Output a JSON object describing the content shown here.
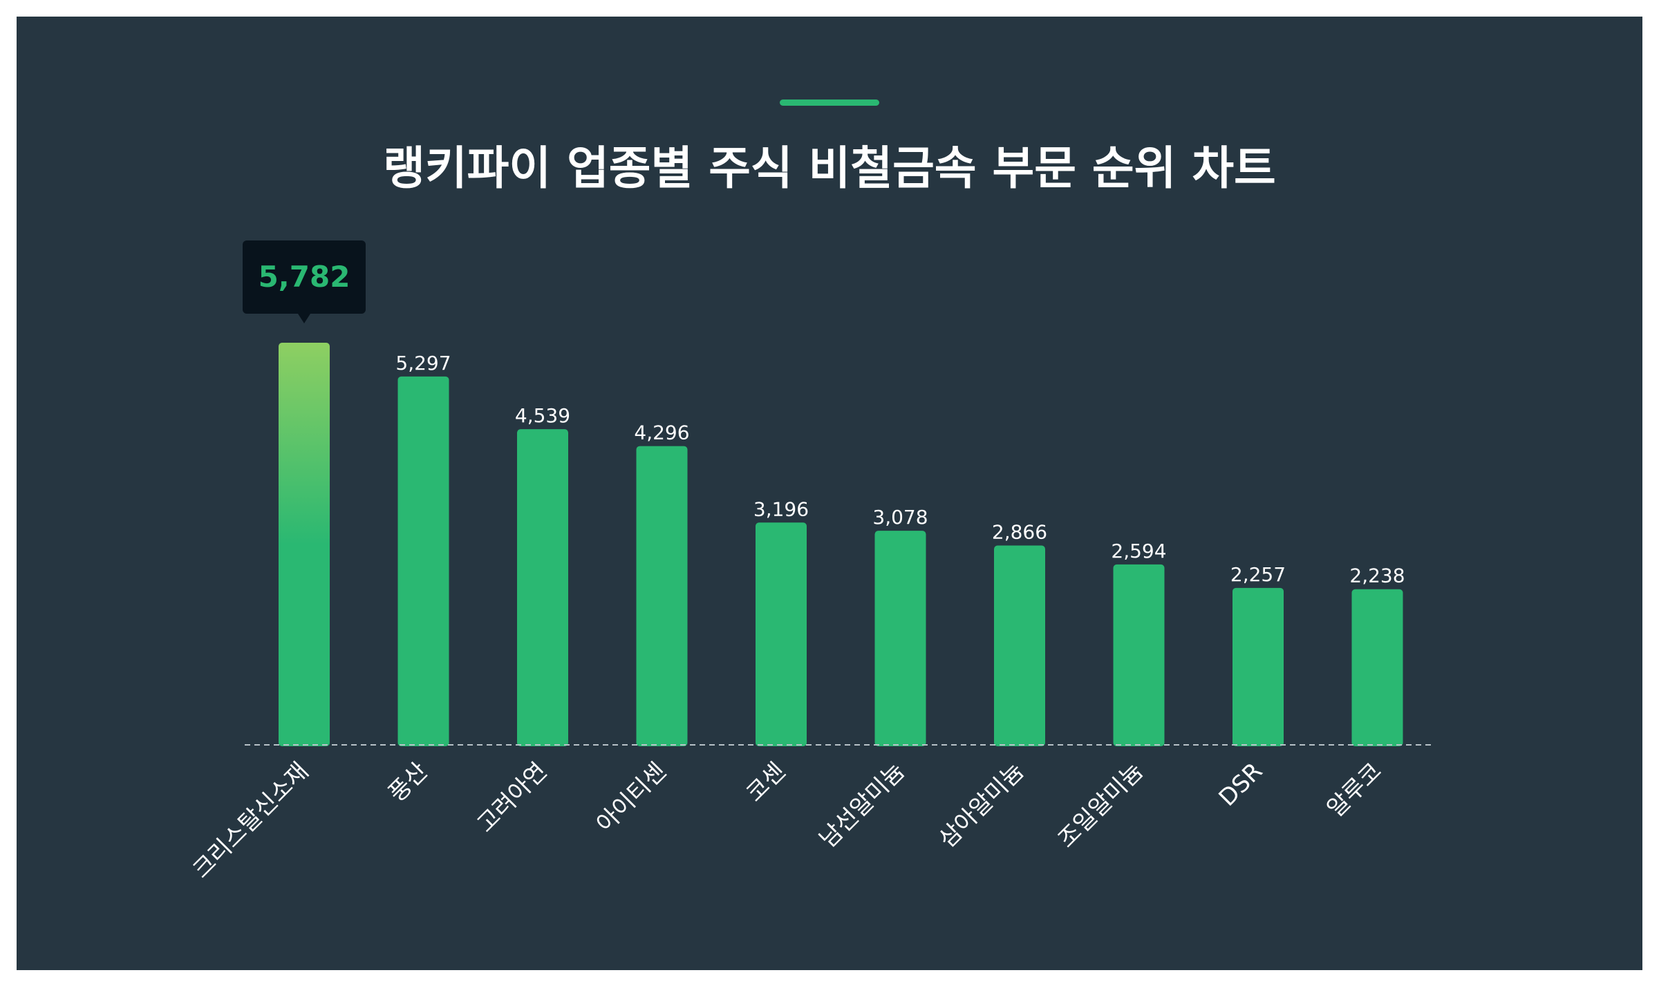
{
  "title": "랭키파이 업종별 주식 비철금속 부문 순위 차트",
  "colors": {
    "panel_bg": "#263641",
    "bar": "#2ab872",
    "bar_highlight_top": "#8ecf62",
    "accent": "#2ab872",
    "tooltip_bg": "#08131c",
    "tooltip_text": "#2ab872",
    "label_text": "#ffffff",
    "baseline": "#b8c2c8"
  },
  "tooltip": {
    "value_label": "5,782"
  },
  "chart_data": {
    "type": "bar",
    "title": "랭키파이 업종별 주식 비철금속 부문 순위 차트",
    "categories": [
      "크리스탈신소재",
      "풍산",
      "고려아연",
      "아이티센",
      "코센",
      "남선알미늄",
      "삼아알미늄",
      "조일알미늄",
      "DSR",
      "알루코"
    ],
    "values": [
      5782,
      5297,
      4539,
      4296,
      3196,
      3078,
      2866,
      2594,
      2257,
      2238
    ],
    "value_labels": [
      "5,782",
      "5,297",
      "4,539",
      "4,296",
      "3,196",
      "3,078",
      "2,866",
      "2,594",
      "2,257",
      "2,238"
    ],
    "highlight_index": 0,
    "xlabel": "",
    "ylabel": "",
    "ylim": [
      0,
      5782
    ],
    "grid": false,
    "legend": "none"
  }
}
